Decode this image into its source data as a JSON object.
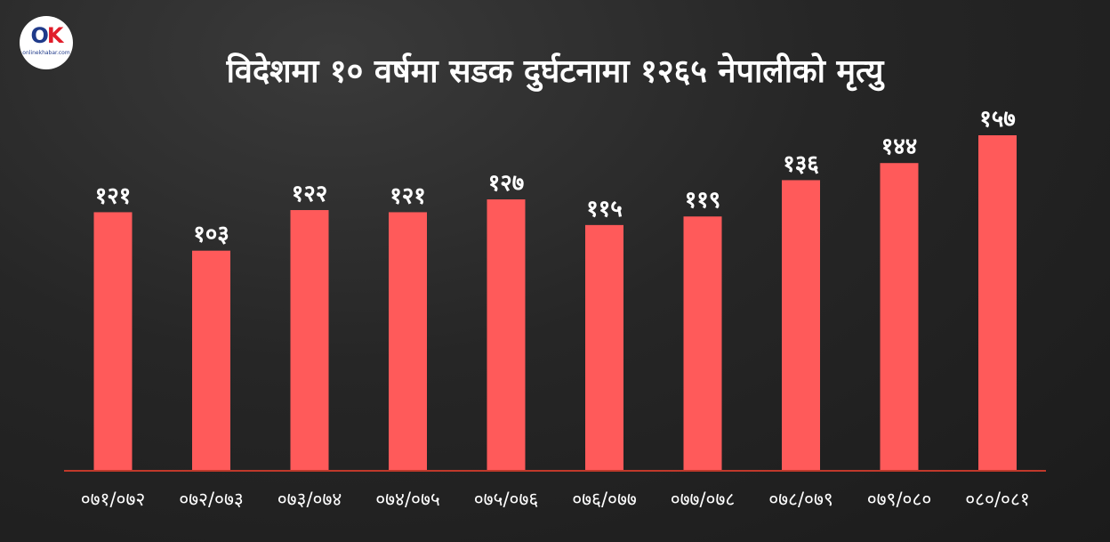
{
  "logo": {
    "mark_o": "O",
    "mark_k": "K",
    "sub": "onlinekhabar.com"
  },
  "colors": {
    "bar": "#ff5a5a",
    "text": "#ffffff",
    "baseline": "#c0392b"
  },
  "chart_data": {
    "type": "bar",
    "title": "विदेशमा १० वर्षमा सडक दुर्घटनामा  १२६५ नेपालीको मृत्यु",
    "categories": [
      "०७१/०७२",
      "०७२/०७३",
      "०७३/०७४",
      "०७४/०७५",
      "०७५/०७६",
      "०७६/०७७",
      "०७७/०७८",
      "०७८/०७९",
      "०७९/०८०",
      "०८०/०८१"
    ],
    "values": [
      121,
      103,
      122,
      121,
      127,
      115,
      119,
      136,
      144,
      157
    ],
    "data_labels": [
      "१२१",
      "१०३",
      "१२२",
      "१२१",
      "१२७",
      "११५",
      "११९",
      "१३६",
      "१४४",
      "१५७"
    ],
    "xlabel": "",
    "ylabel": "",
    "ylim": [
      0,
      157
    ],
    "grid": false,
    "legend": "none"
  }
}
